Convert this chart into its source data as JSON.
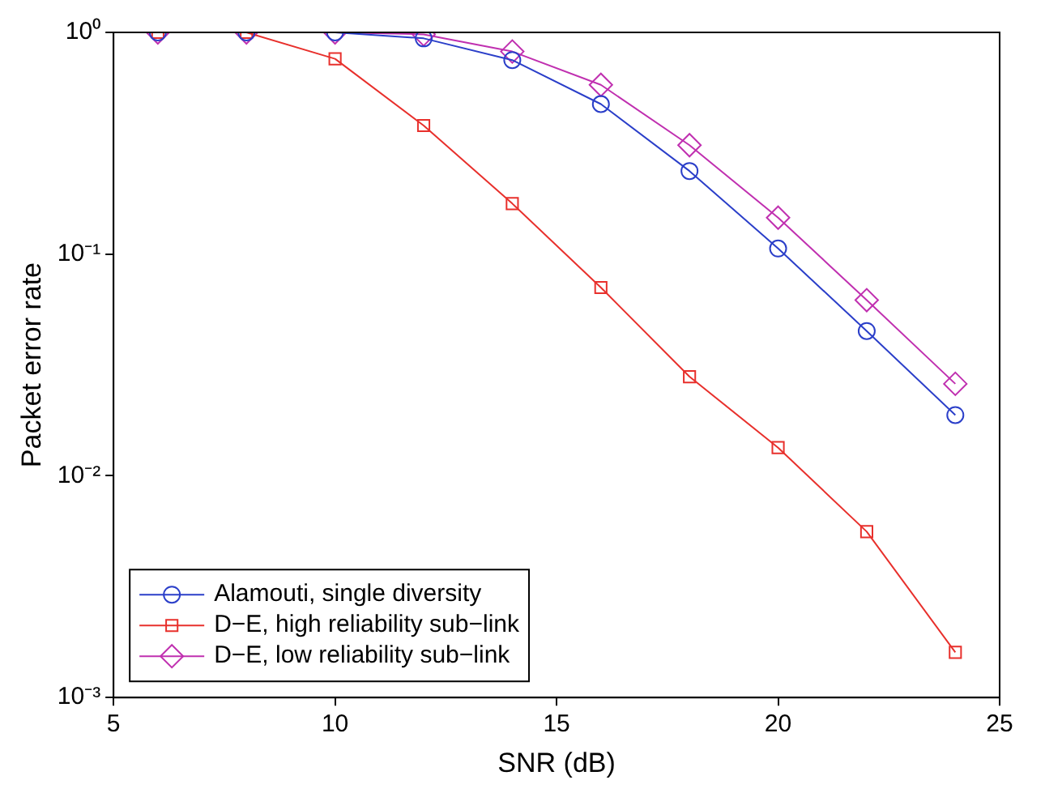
{
  "chart_data": {
    "type": "line",
    "xlabel": "SNR (dB)",
    "ylabel": "Packet error rate",
    "x": [
      6,
      8,
      10,
      12,
      14,
      16,
      18,
      20,
      22,
      24
    ],
    "series": [
      {
        "name": "Alamouti, single diversity",
        "color": "#2b3fc9",
        "marker": "circle",
        "values": [
          1,
          1,
          1,
          0.94,
          0.75,
          0.475,
          0.237,
          0.106,
          0.045,
          0.0188
        ]
      },
      {
        "name": "D−E, high reliability sub−link",
        "color": "#e8302c",
        "marker": "square",
        "values": [
          1,
          1,
          0.76,
          0.38,
          0.169,
          0.0707,
          0.028,
          0.0134,
          0.0056,
          0.0016
        ]
      },
      {
        "name": "D−E, low reliability sub−link",
        "color": "#c030b0",
        "marker": "diamond",
        "values": [
          1,
          1,
          1,
          0.98,
          0.82,
          0.58,
          0.31,
          0.146,
          0.062,
          0.026
        ]
      }
    ],
    "log": "y",
    "xlim": [
      5,
      25
    ],
    "xticks": [
      5,
      10,
      15,
      20,
      25
    ],
    "ylim": [
      0.001,
      1
    ],
    "yticks": [
      {
        "value": 0.001,
        "label": "10⁻³"
      },
      {
        "value": 0.01,
        "label": "10⁻²"
      },
      {
        "value": 0.1,
        "label": "10⁻¹"
      },
      {
        "value": 1,
        "label": "10⁰"
      }
    ],
    "grid": false,
    "legend": "bottom left",
    "line_style": "solid"
  }
}
